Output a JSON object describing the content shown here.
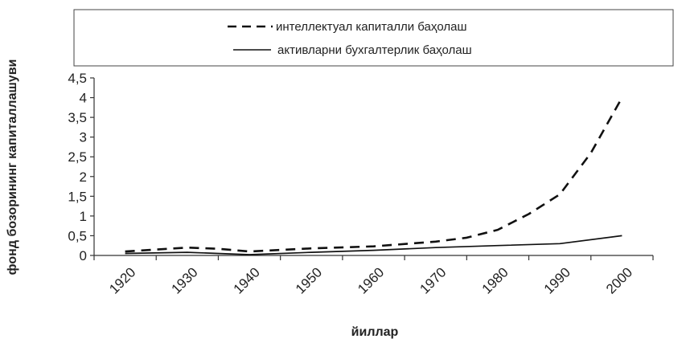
{
  "chart_data": {
    "type": "line",
    "xlabel": "йиллар",
    "ylabel": "фонд бозорининг капиталлашуви",
    "ylim": [
      0,
      4.5
    ],
    "yticks": [
      "0",
      "0,5",
      "1",
      "1,5",
      "2",
      "2,5",
      "3",
      "3,5",
      "4",
      "4,5"
    ],
    "xticks": [
      "1920",
      "1930",
      "1940",
      "1950",
      "1960",
      "1970",
      "1980",
      "1990",
      "2000"
    ],
    "grid": false,
    "legend_position": "top",
    "series": [
      {
        "name": "интеллектуал капиталли баҳолаш",
        "style": "dashed",
        "color": "#111111",
        "points": [
          [
            1920,
            0.1
          ],
          [
            1930,
            0.2
          ],
          [
            1935,
            0.17
          ],
          [
            1940,
            0.1
          ],
          [
            1950,
            0.18
          ],
          [
            1960,
            0.23
          ],
          [
            1970,
            0.35
          ],
          [
            1975,
            0.45
          ],
          [
            1980,
            0.65
          ],
          [
            1985,
            1.05
          ],
          [
            1990,
            1.55
          ],
          [
            1995,
            2.6
          ],
          [
            2000,
            4.0
          ]
        ]
      },
      {
        "name": "активларни бухгалтерлик баҳолаш",
        "style": "solid",
        "color": "#111111",
        "points": [
          [
            1920,
            0.05
          ],
          [
            1930,
            0.08
          ],
          [
            1940,
            0.02
          ],
          [
            1950,
            0.08
          ],
          [
            1960,
            0.13
          ],
          [
            1970,
            0.2
          ],
          [
            1980,
            0.25
          ],
          [
            1990,
            0.3
          ],
          [
            2000,
            0.5
          ]
        ]
      }
    ]
  }
}
